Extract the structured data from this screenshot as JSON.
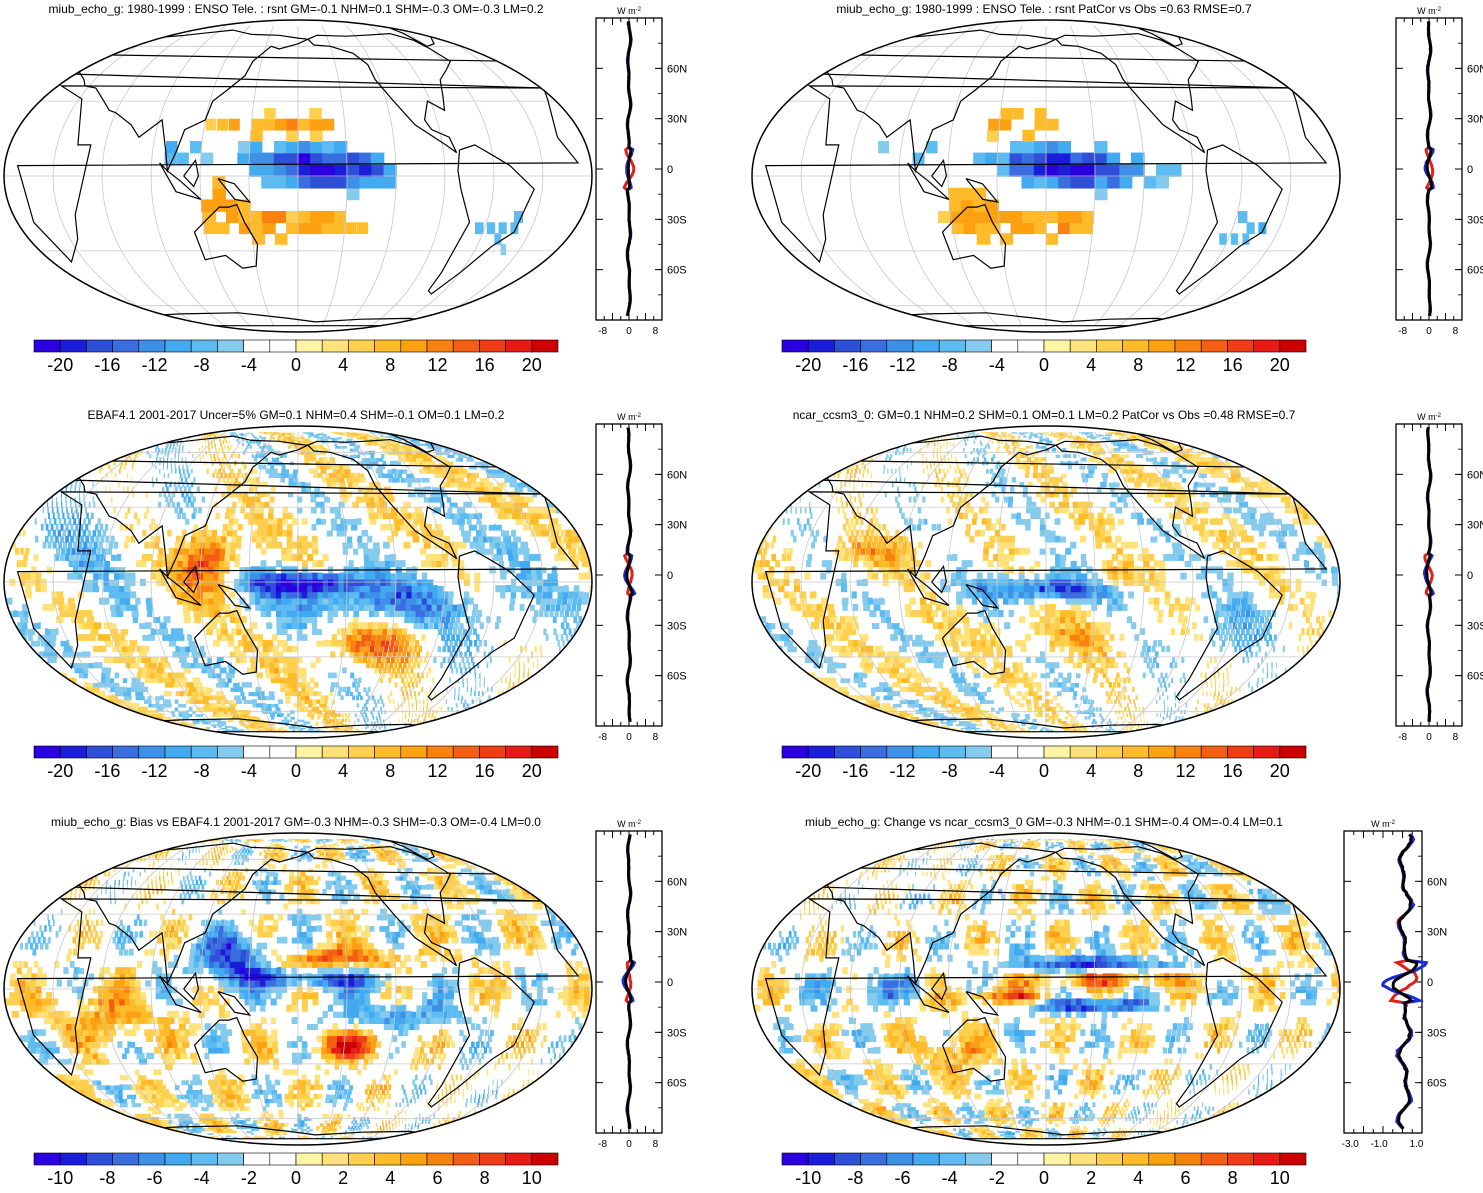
{
  "colors": {
    "palette": [
      "#2a00e0",
      "#1a1ed8",
      "#2e4fd8",
      "#3a6ee0",
      "#3e8fe8",
      "#42aaf0",
      "#5cbcf2",
      "#84cbee",
      "#ffffff",
      "#ffffff",
      "#fff3a6",
      "#ffe27a",
      "#ffd04f",
      "#ffbb2a",
      "#fda012",
      "#f88110",
      "#f35f12",
      "#ee3c14",
      "#e61b16",
      "#cc0000"
    ],
    "obs_line": "#e0201a",
    "model_line": "#1a2ad8",
    "diff_line": "#000000"
  },
  "zonal_unit": "W m",
  "zonal_unit_sup": "-2",
  "lat_labels": [
    "60N",
    "30N",
    "0",
    "30S",
    "60S"
  ],
  "panels": [
    {
      "id": "model",
      "title": "miub_echo_g: 1980-1999 : ENSO Tele. : rsnt GM=-0.1 NHM=0.1 SHM=-0.3 OM=-0.3 LM=0.2",
      "cbar_labels": [
        "-20",
        "-16",
        "-12",
        "-8",
        "-4",
        "0",
        "4",
        "8",
        "12",
        "16",
        "20"
      ],
      "zonal_ticks": [
        "-8",
        "0",
        "8"
      ],
      "field": "coarse"
    },
    {
      "id": "model-patcor",
      "title": "miub_echo_g: 1980-1999 : ENSO Tele. : rsnt PatCor vs Obs =0.63 RMSE=0.7",
      "cbar_labels": [
        "-20",
        "-16",
        "-12",
        "-8",
        "-4",
        "0",
        "4",
        "8",
        "12",
        "16",
        "20"
      ],
      "zonal_ticks": [
        "-8",
        "0",
        "8"
      ],
      "field": "coarse"
    },
    {
      "id": "obs",
      "title": "EBAF4.1 2001-2017 Uncer=5% GM=0.1 NHM=0.4 SHM=-0.1 OM=0.1 LM=0.2",
      "cbar_labels": [
        "-20",
        "-16",
        "-12",
        "-8",
        "-4",
        "0",
        "4",
        "8",
        "12",
        "16",
        "20"
      ],
      "zonal_ticks": [
        "-8",
        "0",
        "8"
      ],
      "field": "obs"
    },
    {
      "id": "reference-model",
      "title": "ncar_ccsm3_0: GM=0.1 NHM=0.2 SHM=0.1 OM=0.1 LM=0.2 PatCor vs Obs =0.48 RMSE=0.7",
      "cbar_labels": [
        "-20",
        "-16",
        "-12",
        "-8",
        "-4",
        "0",
        "4",
        "8",
        "12",
        "16",
        "20"
      ],
      "zonal_ticks": [
        "-8",
        "0",
        "8"
      ],
      "field": "ref"
    },
    {
      "id": "bias",
      "title": "miub_echo_g: Bias vs EBAF4.1 2001-2017 GM=-0.3 NHM=-0.3 SHM=-0.3 OM=-0.4 LM=0.0",
      "cbar_labels": [
        "-10",
        "-8",
        "-6",
        "-4",
        "-2",
        "0",
        "2",
        "4",
        "6",
        "8",
        "10"
      ],
      "zonal_ticks": [
        "-8",
        "0",
        "8"
      ],
      "field": "bias"
    },
    {
      "id": "change",
      "title": "miub_echo_g: Change vs ncar_ccsm3_0 GM=-0.3 NHM=-0.1 SHM=-0.4 OM=-0.4 LM=0.1",
      "cbar_labels": [
        "-10",
        "-8",
        "-6",
        "-4",
        "-2",
        "0",
        "2",
        "4",
        "6",
        "8",
        "10"
      ],
      "zonal_ticks": [
        "-3.0",
        "-1.0",
        "1.0"
      ],
      "field": "change"
    }
  ],
  "chart_data": [
    {
      "type": "heatmap",
      "title": "miub_echo_g: 1980-1999 : ENSO Tele. : rsnt GM=-0.1 NHM=0.1 SHM=-0.3 OM=-0.3 LM=0.2",
      "colorbar_range": [
        -20,
        20
      ],
      "colorbar_ticks": [
        -20,
        -16,
        -12,
        -8,
        -4,
        0,
        4,
        8,
        12,
        16,
        20
      ],
      "latitudes": [
        "60N",
        "30N",
        "0",
        "30S",
        "60S"
      ],
      "zonal_mean_ticks": [
        -8,
        0,
        8
      ]
    },
    {
      "type": "heatmap",
      "title": "miub_echo_g: 1980-1999 : ENSO Tele. : rsnt PatCor vs Obs =0.63 RMSE=0.7",
      "colorbar_range": [
        -20,
        20
      ],
      "colorbar_ticks": [
        -20,
        -16,
        -12,
        -8,
        -4,
        0,
        4,
        8,
        12,
        16,
        20
      ],
      "latitudes": [
        "60N",
        "30N",
        "0",
        "30S",
        "60S"
      ],
      "zonal_mean_ticks": [
        -8,
        0,
        8
      ]
    },
    {
      "type": "heatmap",
      "title": "EBAF4.1 2001-2017 Uncer=5% GM=0.1 NHM=0.4 SHM=-0.1 OM=0.1 LM=0.2",
      "colorbar_range": [
        -20,
        20
      ],
      "colorbar_ticks": [
        -20,
        -16,
        -12,
        -8,
        -4,
        0,
        4,
        8,
        12,
        16,
        20
      ],
      "latitudes": [
        "60N",
        "30N",
        "0",
        "30S",
        "60S"
      ],
      "zonal_mean_ticks": [
        -8,
        0,
        8
      ]
    },
    {
      "type": "heatmap",
      "title": "ncar_ccsm3_0: GM=0.1 NHM=0.2 SHM=0.1 OM=0.1 LM=0.2 PatCor vs Obs =0.48 RMSE=0.7",
      "colorbar_range": [
        -20,
        20
      ],
      "colorbar_ticks": [
        -20,
        -16,
        -12,
        -8,
        -4,
        0,
        4,
        8,
        12,
        16,
        20
      ],
      "latitudes": [
        "60N",
        "30N",
        "0",
        "30S",
        "60S"
      ],
      "zonal_mean_ticks": [
        -8,
        0,
        8
      ]
    },
    {
      "type": "heatmap",
      "title": "miub_echo_g: Bias vs EBAF4.1 2001-2017 GM=-0.3 NHM=-0.3 SHM=-0.3 OM=-0.4 LM=0.0",
      "colorbar_range": [
        -10,
        10
      ],
      "colorbar_ticks": [
        -10,
        -8,
        -6,
        -4,
        -2,
        0,
        2,
        4,
        6,
        8,
        10
      ],
      "latitudes": [
        "60N",
        "30N",
        "0",
        "30S",
        "60S"
      ],
      "zonal_mean_ticks": [
        -8,
        0,
        8
      ]
    },
    {
      "type": "heatmap",
      "title": "miub_echo_g: Change vs ncar_ccsm3_0 GM=-0.3 NHM=-0.1 SHM=-0.4 OM=-0.4 LM=0.1",
      "colorbar_range": [
        -10,
        10
      ],
      "colorbar_ticks": [
        -10,
        -8,
        -6,
        -4,
        -2,
        0,
        2,
        4,
        6,
        8,
        10
      ],
      "latitudes": [
        "60N",
        "30N",
        "0",
        "30S",
        "60S"
      ],
      "zonal_mean_ticks": [
        -3.0,
        -1.0,
        1.0
      ]
    }
  ]
}
